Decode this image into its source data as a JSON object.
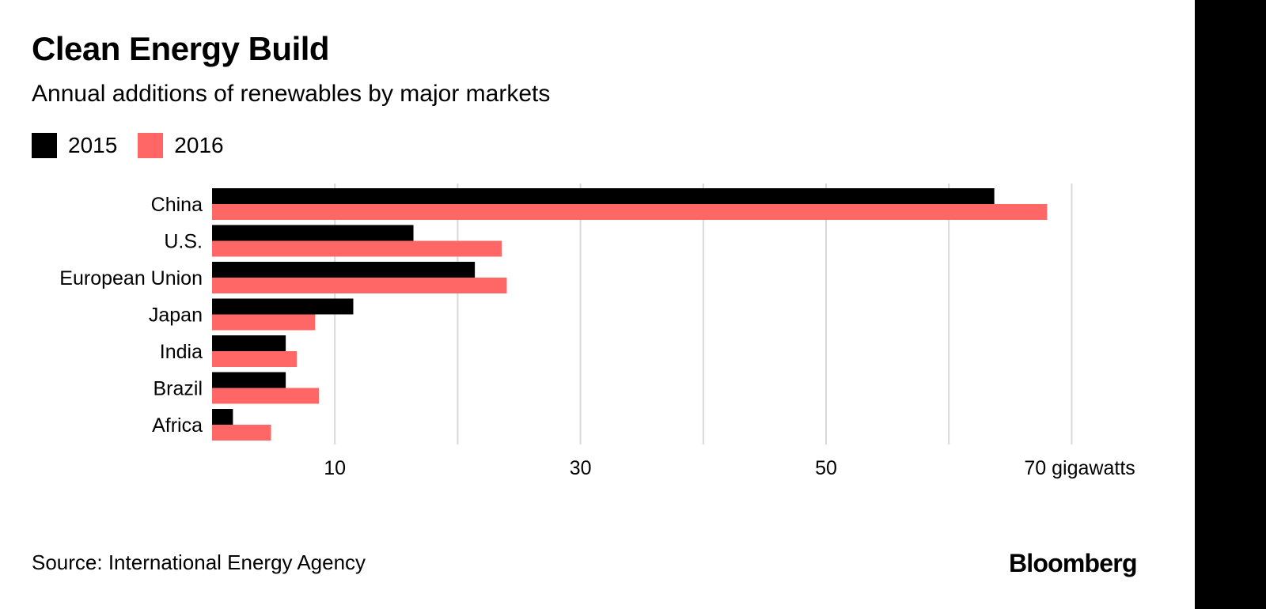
{
  "header": {
    "title": "Clean Energy Build",
    "subtitle": "Annual additions of renewables by major markets"
  },
  "legend": [
    {
      "label": "2015",
      "color": "#000000"
    },
    {
      "label": "2016",
      "color": "#ff6666"
    }
  ],
  "footer": {
    "source": "Source: International Energy Agency",
    "logo": "Bloomberg"
  },
  "chart_data": {
    "type": "bar",
    "orientation": "horizontal",
    "categories": [
      "China",
      "U.S.",
      "European Union",
      "Japan",
      "India",
      "Brazil",
      "Africa"
    ],
    "series": [
      {
        "name": "2015",
        "color": "#000000",
        "values": [
          63.7,
          16.4,
          21.4,
          11.5,
          6.0,
          6.0,
          1.7
        ]
      },
      {
        "name": "2016",
        "color": "#ff6666",
        "values": [
          68.0,
          23.6,
          24.0,
          8.4,
          6.9,
          8.7,
          4.8
        ]
      }
    ],
    "xlim": [
      0,
      70
    ],
    "x_ticks": [
      10,
      30,
      50,
      70
    ],
    "x_tick_labels": [
      "10",
      "30",
      "50",
      "70 gigawatts"
    ],
    "gridlines": [
      10,
      20,
      30,
      40,
      50,
      60,
      70
    ],
    "grid": true,
    "legend_position": "top-left"
  }
}
